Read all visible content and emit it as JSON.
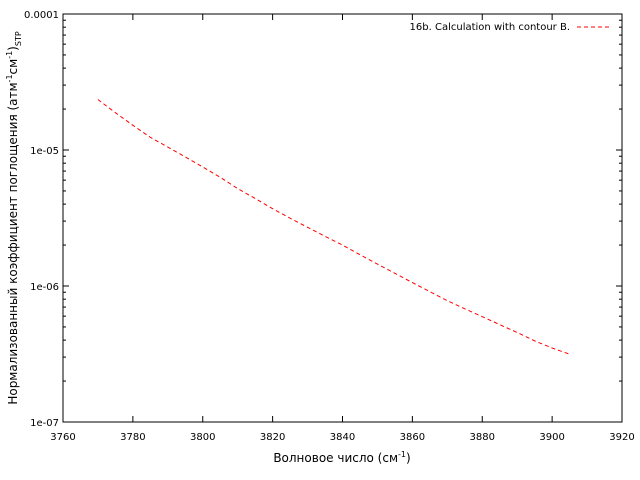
{
  "chart_data": {
    "type": "line",
    "title": "",
    "xlabel": "Волновое число (см⁻¹)",
    "xlabel_parts": {
      "main": "Волновое число (см",
      "sup": "-1",
      "tail": ")"
    },
    "ylabel": "Нормализованный коэффициент поглощения (атм⁻¹см⁻¹)STP",
    "ylabel_parts": {
      "main": "Нормализованный коэффициент поглощения (атм",
      "sup1": "-1",
      "mid": "см",
      "sup2": "-1",
      "tail": ")",
      "sub": "STP"
    },
    "xlim": [
      3760,
      3920
    ],
    "ylim": [
      1e-07,
      0.0001
    ],
    "yscale": "log",
    "grid": false,
    "legend_position": "top-right",
    "x_ticks": [
      3760,
      3780,
      3800,
      3820,
      3840,
      3860,
      3880,
      3900,
      3920
    ],
    "x_tick_labels": [
      "3760",
      "3780",
      "3800",
      "3820",
      "3840",
      "3860",
      "3880",
      "3900",
      "3920"
    ],
    "y_ticks": [
      0.0001,
      1e-05,
      1e-06,
      1e-07
    ],
    "y_tick_labels": [
      "0.0001",
      "1e-05",
      "1e-06",
      "1e-07"
    ],
    "series": [
      {
        "name": "16b. Calculation with contour B.",
        "color": "#ff0000",
        "style": "dashed",
        "x": [
          3770,
          3775,
          3780,
          3785,
          3790,
          3795,
          3800,
          3805,
          3810,
          3815,
          3820,
          3825,
          3830,
          3835,
          3840,
          3845,
          3850,
          3855,
          3860,
          3865,
          3870,
          3875,
          3880,
          3885,
          3890,
          3895,
          3900,
          3905
        ],
        "y": [
          2.35e-05,
          1.88e-05,
          1.52e-05,
          1.24e-05,
          1.05e-05,
          8.9e-06,
          7.5e-06,
          6.3e-06,
          5.2e-06,
          4.4e-06,
          3.7e-06,
          3.15e-06,
          2.7e-06,
          2.32e-06,
          2e-06,
          1.7e-06,
          1.45e-06,
          1.24e-06,
          1.06e-06,
          9.1e-07,
          7.8e-07,
          6.8e-07,
          5.95e-07,
          5.2e-07,
          4.55e-07,
          3.95e-07,
          3.5e-07,
          3.15e-07
        ]
      }
    ]
  }
}
